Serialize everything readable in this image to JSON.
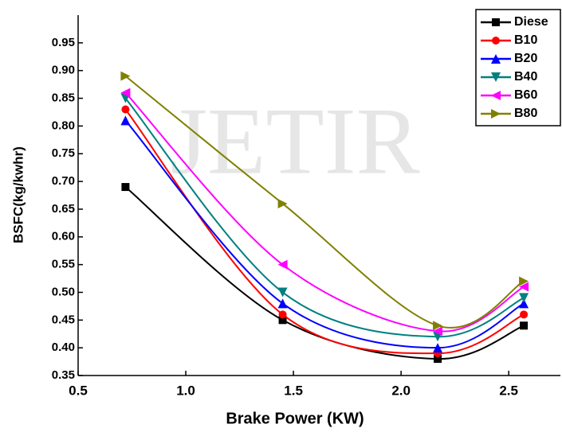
{
  "chart_data": {
    "type": "line",
    "watermark": "JETIR",
    "x_label": "Brake Power (KW)",
    "y_label": "BSFC(kg/kwhr)",
    "x": [
      0.72,
      1.45,
      2.17,
      2.57
    ],
    "xlim": [
      0.5,
      2.74
    ],
    "ylim": [
      0.35,
      1.0
    ],
    "xticks": [
      0.5,
      {
        "value": 1.0,
        "label": "1.0"
      },
      1.5,
      {
        "value": 2.0,
        "label": "2.0"
      },
      2.5
    ],
    "yticks": [
      0.35,
      {
        "value": 0.4,
        "label": "0.40"
      },
      0.45,
      {
        "value": 0.5,
        "label": "0.50"
      },
      0.55,
      {
        "value": 0.6,
        "label": "0.60"
      },
      0.65,
      {
        "value": 0.7,
        "label": "0.70"
      },
      0.75,
      {
        "value": 0.8,
        "label": "0.80"
      },
      0.85,
      {
        "value": 0.9,
        "label": "0.90"
      },
      0.95
    ],
    "legend": "top-right",
    "series": [
      {
        "name": "Diese",
        "color": "#000000",
        "marker": "square",
        "values": [
          0.69,
          0.45,
          0.38,
          0.44
        ]
      },
      {
        "name": "B10",
        "color": "#ff0000",
        "marker": "circle",
        "values": [
          0.83,
          0.46,
          0.39,
          0.46
        ]
      },
      {
        "name": "B20",
        "color": "#0000ff",
        "marker": "triangle-up",
        "values": [
          0.81,
          0.48,
          0.4,
          0.48
        ]
      },
      {
        "name": "B40",
        "color": "#008080",
        "marker": "triangle-down",
        "values": [
          0.85,
          0.5,
          0.42,
          0.49
        ]
      },
      {
        "name": "B60",
        "color": "#ff00ff",
        "marker": "triangle-left",
        "values": [
          0.86,
          0.55,
          0.43,
          0.51
        ]
      },
      {
        "name": "B80",
        "color": "#808000",
        "marker": "triangle-right",
        "values": [
          0.89,
          0.66,
          0.44,
          0.52
        ]
      }
    ]
  }
}
